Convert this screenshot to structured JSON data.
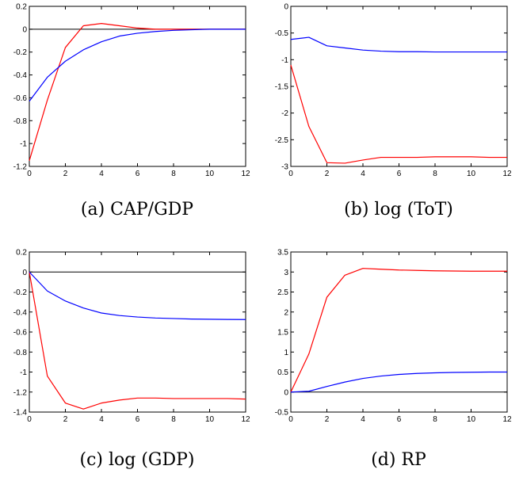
{
  "chart_data": [
    {
      "type": "line",
      "caption": "(a)  CAP/GDP",
      "x": [
        0,
        1,
        2,
        3,
        4,
        5,
        6,
        7,
        8,
        9,
        10,
        11,
        12
      ],
      "xlim": [
        0,
        12
      ],
      "ylim": [
        -1.2,
        0.2
      ],
      "xticks": [
        0,
        2,
        4,
        6,
        8,
        10,
        12
      ],
      "yticks": [
        0.2,
        0,
        -0.2,
        -0.4,
        -0.6,
        -0.8,
        -1,
        -1.2
      ],
      "zero_line": true,
      "grid": false,
      "series": [
        {
          "color": "#ff0000",
          "values": [
            -1.15,
            -0.62,
            -0.16,
            0.03,
            0.05,
            0.03,
            0.01,
            0.0,
            0.0,
            0.0,
            0.0,
            0.0,
            0.0
          ]
        },
        {
          "color": "#0000ff",
          "values": [
            -0.63,
            -0.42,
            -0.28,
            -0.18,
            -0.11,
            -0.06,
            -0.035,
            -0.02,
            -0.01,
            -0.005,
            0.0,
            0.0,
            0.0
          ]
        }
      ]
    },
    {
      "type": "line",
      "caption": "(b)  log (ToT)",
      "x": [
        0,
        1,
        2,
        3,
        4,
        5,
        6,
        7,
        8,
        9,
        10,
        11,
        12
      ],
      "xlim": [
        0,
        12
      ],
      "ylim": [
        -3,
        0
      ],
      "xticks": [
        0,
        2,
        4,
        6,
        8,
        10,
        12
      ],
      "yticks": [
        0,
        -0.5,
        -1,
        -1.5,
        -2,
        -2.5,
        -3
      ],
      "zero_line": false,
      "grid": false,
      "series": [
        {
          "color": "#ff0000",
          "values": [
            -1.1,
            -2.25,
            -2.93,
            -2.94,
            -2.88,
            -2.83,
            -2.83,
            -2.83,
            -2.82,
            -2.82,
            -2.82,
            -2.83,
            -2.83
          ]
        },
        {
          "color": "#0000ff",
          "values": [
            -0.62,
            -0.58,
            -0.74,
            -0.78,
            -0.82,
            -0.84,
            -0.85,
            -0.85,
            -0.855,
            -0.855,
            -0.855,
            -0.855,
            -0.855
          ]
        }
      ]
    },
    {
      "type": "line",
      "caption": "(c)  log (GDP)",
      "x": [
        0,
        1,
        2,
        3,
        4,
        5,
        6,
        7,
        8,
        9,
        10,
        11,
        12
      ],
      "xlim": [
        0,
        12
      ],
      "ylim": [
        -1.4,
        0.2
      ],
      "xticks": [
        0,
        2,
        4,
        6,
        8,
        10,
        12
      ],
      "yticks": [
        0.2,
        0,
        -0.2,
        -0.4,
        -0.6,
        -0.8,
        -1,
        -1.2,
        -1.4
      ],
      "zero_line": true,
      "grid": false,
      "series": [
        {
          "color": "#ff0000",
          "values": [
            0.0,
            -1.04,
            -1.31,
            -1.37,
            -1.31,
            -1.28,
            -1.26,
            -1.26,
            -1.265,
            -1.265,
            -1.265,
            -1.265,
            -1.27
          ]
        },
        {
          "color": "#0000ff",
          "values": [
            0.0,
            -0.19,
            -0.29,
            -0.36,
            -0.41,
            -0.435,
            -0.45,
            -0.46,
            -0.465,
            -0.47,
            -0.472,
            -0.474,
            -0.475
          ]
        }
      ]
    },
    {
      "type": "line",
      "caption": "(d)  RP",
      "x": [
        0,
        1,
        2,
        3,
        4,
        5,
        6,
        7,
        8,
        9,
        10,
        11,
        12
      ],
      "xlim": [
        0,
        12
      ],
      "ylim": [
        -0.5,
        3.5
      ],
      "xticks": [
        0,
        2,
        4,
        6,
        8,
        10,
        12
      ],
      "yticks": [
        3.5,
        3,
        2.5,
        2,
        1.5,
        1,
        0.5,
        0,
        -0.5
      ],
      "zero_line": true,
      "grid": false,
      "series": [
        {
          "color": "#ff0000",
          "values": [
            0.0,
            0.95,
            2.37,
            2.92,
            3.09,
            3.07,
            3.05,
            3.04,
            3.03,
            3.025,
            3.02,
            3.02,
            3.02
          ]
        },
        {
          "color": "#0000ff",
          "values": [
            0.0,
            0.02,
            0.14,
            0.25,
            0.34,
            0.4,
            0.44,
            0.465,
            0.48,
            0.49,
            0.495,
            0.5,
            0.5
          ]
        }
      ]
    }
  ]
}
